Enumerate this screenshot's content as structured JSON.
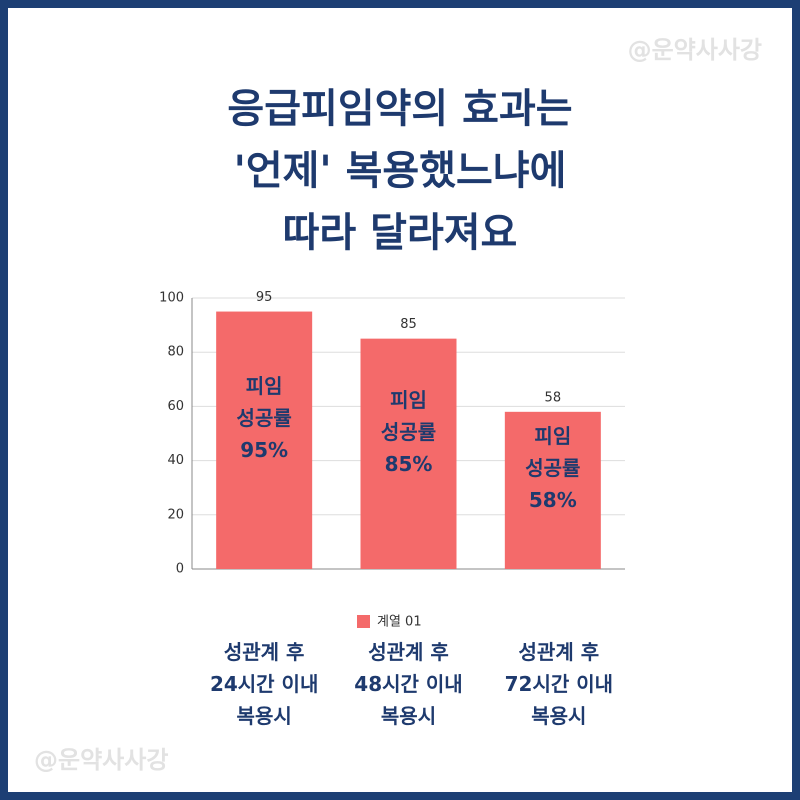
{
  "chart_data": {
    "type": "bar",
    "title": "응급피임약의 효과는\n'언제' 복용했느냐에\n따라 달라져요",
    "watermark": "@운약사사강",
    "categories": [
      "성관계 후\n24시간 이내\n복용시",
      "성관계 후\n48시간 이내\n복용시",
      "성관계 후\n72시간 이내\n복용시"
    ],
    "series": [
      {
        "name": "계열 01",
        "color": "#f46a6a",
        "values": [
          95,
          85,
          58
        ]
      }
    ],
    "bar_labels": [
      "피임\n성공률\n95%",
      "피임\n성공률\n85%",
      "피임\n성공률\n58%"
    ],
    "ylim": [
      0,
      100
    ],
    "yticks": [
      0,
      20,
      40,
      60,
      80,
      100
    ],
    "grid": true
  }
}
